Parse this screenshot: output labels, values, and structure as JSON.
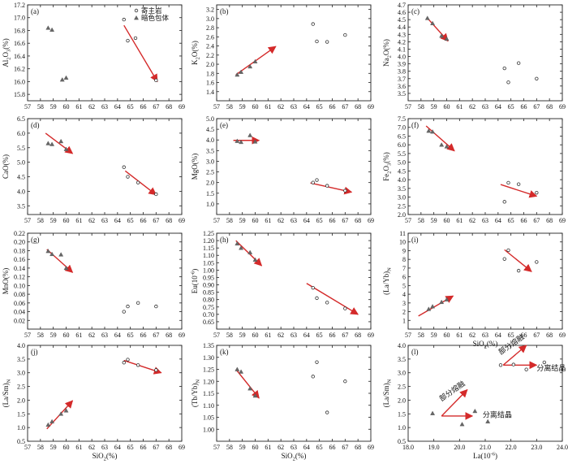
{
  "legend": {
    "host": "寄主岩",
    "incl": "暗色包体"
  },
  "chart_data": [
    {
      "id": "a",
      "type": "scatter",
      "panel_label": "(a)",
      "xlabel": "",
      "ylabel": "Al2O3(%)",
      "xlim": [
        57,
        69
      ],
      "ylim": [
        15.7,
        17.2
      ],
      "x_ticks": [
        "57",
        "58",
        "59",
        "60",
        "61",
        "62",
        "63",
        "64",
        "65",
        "66",
        "67",
        "68",
        "69"
      ],
      "y_ticks": [
        "15.8",
        "16.0",
        "16.2",
        "16.4",
        "16.6",
        "16.8",
        "17.0",
        "17.2"
      ],
      "host_points": [
        [
          64.5,
          16.97
        ],
        [
          64.8,
          16.64
        ],
        [
          65.4,
          16.68
        ],
        [
          67.0,
          16.02
        ]
      ],
      "incl_points": [
        [
          58.6,
          16.84
        ],
        [
          58.9,
          16.81
        ],
        [
          59.7,
          16.03
        ],
        [
          60.0,
          16.06
        ]
      ],
      "arrows": [
        {
          "from": [
            64.5,
            16.88
          ],
          "to": [
            67.1,
            16.0
          ]
        }
      ]
    },
    {
      "id": "b",
      "type": "scatter",
      "panel_label": "(b)",
      "xlabel": "",
      "ylabel": "K2O(%)",
      "xlim": [
        57,
        69
      ],
      "ylim": [
        1.2,
        3.3
      ],
      "x_ticks": [
        "57",
        "58",
        "59",
        "60",
        "61",
        "62",
        "63",
        "64",
        "65",
        "66",
        "67",
        "68",
        "69"
      ],
      "y_ticks": [
        "1.4",
        "1.6",
        "1.8",
        "2.0",
        "2.2",
        "2.4",
        "2.6",
        "2.8",
        "3.0",
        "3.2"
      ],
      "host_points": [
        [
          64.5,
          2.88
        ],
        [
          64.8,
          2.5
        ],
        [
          65.6,
          2.49
        ],
        [
          67.0,
          2.64
        ]
      ],
      "incl_points": [
        [
          58.6,
          1.77
        ],
        [
          58.9,
          1.83
        ],
        [
          59.6,
          1.95
        ],
        [
          60.0,
          2.06
        ]
      ],
      "arrows": [
        {
          "from": [
            58.5,
            1.77
          ],
          "to": [
            61.6,
            2.39
          ]
        }
      ]
    },
    {
      "id": "c",
      "type": "scatter",
      "panel_label": "(c)",
      "xlabel": "",
      "ylabel": "Na2O(%)",
      "xlim": [
        57,
        69
      ],
      "ylim": [
        3.4,
        4.7
      ],
      "x_ticks": [
        "57",
        "58",
        "59",
        "60",
        "61",
        "62",
        "63",
        "64",
        "65",
        "66",
        "67",
        "68",
        "69"
      ],
      "y_ticks": [
        "3.5",
        "3.6",
        "3.7",
        "3.8",
        "3.9",
        "4.0",
        "4.1",
        "4.2",
        "4.3",
        "4.4",
        "4.5",
        "4.6",
        "4.7"
      ],
      "host_points": [
        [
          64.5,
          3.84
        ],
        [
          64.8,
          3.65
        ],
        [
          65.6,
          3.91
        ],
        [
          67.0,
          3.7
        ]
      ],
      "incl_points": [
        [
          58.5,
          4.52
        ],
        [
          58.9,
          4.45
        ],
        [
          59.6,
          4.28
        ],
        [
          60.0,
          4.24
        ]
      ],
      "arrows": [
        {
          "from": [
            58.5,
            4.52
          ],
          "to": [
            60.1,
            4.21
          ]
        }
      ]
    },
    {
      "id": "d",
      "type": "scatter",
      "panel_label": "(d)",
      "xlabel": "",
      "ylabel": "CaO(%)",
      "xlim": [
        57,
        69
      ],
      "ylim": [
        3.2,
        6.5
      ],
      "x_ticks": [
        "57",
        "58",
        "59",
        "60",
        "61",
        "62",
        "63",
        "64",
        "65",
        "66",
        "67",
        "68",
        "69"
      ],
      "y_ticks": [
        "3.5",
        "4.0",
        "4.5",
        "5.0",
        "5.5",
        "6.0",
        "6.5"
      ],
      "host_points": [
        [
          64.5,
          4.83
        ],
        [
          64.8,
          4.5
        ],
        [
          65.6,
          4.3
        ],
        [
          67.0,
          3.9
        ]
      ],
      "incl_points": [
        [
          58.6,
          5.65
        ],
        [
          58.9,
          5.62
        ],
        [
          59.6,
          5.72
        ],
        [
          60.0,
          5.45
        ]
      ],
      "arrows": [
        {
          "from": [
            58.4,
            6.0
          ],
          "to": [
            60.5,
            5.3
          ]
        },
        {
          "from": [
            64.6,
            4.7
          ],
          "to": [
            67.0,
            3.88
          ]
        }
      ]
    },
    {
      "id": "e",
      "type": "scatter",
      "panel_label": "(e)",
      "xlabel": "",
      "ylabel": "MgO(%)",
      "xlim": [
        57,
        69
      ],
      "ylim": [
        0.5,
        5.0
      ],
      "x_ticks": [
        "57",
        "58",
        "59",
        "60",
        "61",
        "62",
        "63",
        "64",
        "65",
        "66",
        "67",
        "68",
        "69"
      ],
      "y_ticks": [
        "1.0",
        "1.5",
        "2.0",
        "2.5",
        "3.0",
        "3.5",
        "4.0",
        "4.5",
        "5.0"
      ],
      "host_points": [
        [
          64.5,
          2.0
        ],
        [
          64.8,
          2.12
        ],
        [
          65.6,
          1.85
        ],
        [
          67.0,
          1.62
        ]
      ],
      "incl_points": [
        [
          58.6,
          3.95
        ],
        [
          58.9,
          3.9
        ],
        [
          59.6,
          4.22
        ],
        [
          60.0,
          3.92
        ]
      ],
      "arrows": [
        {
          "from": [
            58.3,
            3.98
          ],
          "to": [
            60.3,
            3.98
          ]
        },
        {
          "from": [
            64.3,
            1.98
          ],
          "to": [
            67.5,
            1.55
          ]
        }
      ]
    },
    {
      "id": "f",
      "type": "scatter",
      "panel_label": "(f)",
      "xlabel": "",
      "ylabel": "Fe2O3(%)",
      "xlim": [
        57,
        69
      ],
      "ylim": [
        2.0,
        7.5
      ],
      "x_ticks": [
        "57",
        "58",
        "59",
        "60",
        "61",
        "62",
        "63",
        "64",
        "65",
        "66",
        "67",
        "68",
        "69"
      ],
      "y_ticks": [
        "2.0",
        "2.5",
        "3.0",
        "3.5",
        "4.0",
        "4.5",
        "5.0",
        "5.5",
        "6.0",
        "6.5",
        "7.0",
        "7.5"
      ],
      "host_points": [
        [
          64.5,
          2.73
        ],
        [
          64.8,
          3.82
        ],
        [
          65.6,
          3.74
        ],
        [
          67.0,
          3.25
        ]
      ],
      "incl_points": [
        [
          58.6,
          6.8
        ],
        [
          58.9,
          6.75
        ],
        [
          59.6,
          6.0
        ],
        [
          60.0,
          5.9
        ]
      ],
      "arrows": [
        {
          "from": [
            58.4,
            7.08
          ],
          "to": [
            60.6,
            5.65
          ]
        },
        {
          "from": [
            64.2,
            3.72
          ],
          "to": [
            67.0,
            3.05
          ]
        }
      ]
    },
    {
      "id": "g",
      "type": "scatter",
      "panel_label": "(g)",
      "xlabel": "",
      "ylabel": "MnO(%)",
      "xlim": [
        57,
        69
      ],
      "ylim": [
        0.0,
        0.22
      ],
      "x_ticks": [
        "57",
        "58",
        "59",
        "60",
        "61",
        "62",
        "63",
        "64",
        "65",
        "66",
        "67",
        "68",
        "69"
      ],
      "y_ticks": [
        "0.02",
        "0.04",
        "0.06",
        "0.08",
        "0.10",
        "0.12",
        "0.14",
        "0.16",
        "0.18",
        "0.20",
        "0.22"
      ],
      "host_points": [
        [
          64.5,
          0.04
        ],
        [
          64.8,
          0.052
        ],
        [
          65.6,
          0.06
        ],
        [
          67.0,
          0.052
        ]
      ],
      "incl_points": [
        [
          58.6,
          0.179
        ],
        [
          58.9,
          0.172
        ],
        [
          59.6,
          0.171
        ],
        [
          60.0,
          0.14
        ]
      ],
      "arrows": [
        {
          "from": [
            58.5,
            0.183
          ],
          "to": [
            60.5,
            0.13
          ]
        }
      ]
    },
    {
      "id": "h",
      "type": "scatter",
      "panel_label": "(h)",
      "xlabel": "",
      "ylabel": "Eu(10⁻⁶)",
      "xlim": [
        57,
        69
      ],
      "ylim": [
        0.6,
        1.25
      ],
      "x_ticks": [
        "57",
        "58",
        "59",
        "60",
        "61",
        "62",
        "63",
        "64",
        "65",
        "66",
        "67",
        "68",
        "69"
      ],
      "y_ticks": [
        "0.65",
        "0.70",
        "0.75",
        "0.80",
        "0.85",
        "0.90",
        "0.95",
        "1.00",
        "1.05",
        "1.10",
        "1.15",
        "1.20",
        "1.25"
      ],
      "host_points": [
        [
          64.5,
          0.88
        ],
        [
          64.8,
          0.81
        ],
        [
          65.6,
          0.78
        ],
        [
          67.0,
          0.74
        ]
      ],
      "incl_points": [
        [
          58.6,
          1.18
        ],
        [
          58.9,
          1.15
        ],
        [
          59.6,
          1.12
        ],
        [
          60.0,
          1.07
        ]
      ],
      "arrows": [
        {
          "from": [
            58.5,
            1.2
          ],
          "to": [
            60.5,
            1.03
          ]
        },
        {
          "from": [
            64.0,
            0.91
          ],
          "to": [
            68.0,
            0.7
          ]
        }
      ]
    },
    {
      "id": "i",
      "type": "scatter",
      "panel_label": "(i)",
      "xlabel": "SiO2(%)",
      "ylabel": "(La/Yb)N",
      "xlim": [
        57,
        69
      ],
      "ylim": [
        0,
        11
      ],
      "x_ticks": [
        "57",
        "58",
        "59",
        "60",
        "61",
        "62",
        "63",
        "64",
        "65",
        "66",
        "67",
        "68",
        "69"
      ],
      "y_ticks": [
        "1",
        "2",
        "3",
        "4",
        "5",
        "6",
        "7",
        "8",
        "9",
        "10",
        "11"
      ],
      "host_points": [
        [
          64.5,
          8.05
        ],
        [
          64.8,
          9.05
        ],
        [
          65.6,
          6.7
        ],
        [
          67.0,
          7.7
        ]
      ],
      "incl_points": [
        [
          58.6,
          2.3
        ],
        [
          58.9,
          2.6
        ],
        [
          59.6,
          3.1
        ],
        [
          60.0,
          3.4
        ]
      ],
      "arrows": [
        {
          "from": [
            57.8,
            1.5
          ],
          "to": [
            60.5,
            3.8
          ]
        },
        {
          "from": [
            64.5,
            9.1
          ],
          "to": [
            66.6,
            6.6
          ]
        }
      ]
    },
    {
      "id": "j",
      "type": "scatter",
      "panel_label": "(j)",
      "xlabel": "SiO2(%)",
      "ylabel": "(La/Sm)N",
      "xlim": [
        57,
        69
      ],
      "ylim": [
        0.5,
        4.0
      ],
      "x_ticks": [
        "57",
        "58",
        "59",
        "60",
        "61",
        "62",
        "63",
        "64",
        "65",
        "66",
        "67",
        "68",
        "69"
      ],
      "y_ticks": [
        "0.5",
        "1.0",
        "1.5",
        "2.0",
        "2.5",
        "3.0",
        "3.5",
        "4.0"
      ],
      "host_points": [
        [
          64.5,
          3.37
        ],
        [
          64.8,
          3.48
        ],
        [
          65.6,
          3.28
        ],
        [
          67.0,
          3.1
        ]
      ],
      "incl_points": [
        [
          58.6,
          1.1
        ],
        [
          58.9,
          1.22
        ],
        [
          59.6,
          1.5
        ],
        [
          60.0,
          1.62
        ]
      ],
      "arrows": [
        {
          "from": [
            58.5,
            0.95
          ],
          "to": [
            60.5,
            1.98
          ]
        },
        {
          "from": [
            64.5,
            3.45
          ],
          "to": [
            67.4,
            3.0
          ]
        }
      ]
    },
    {
      "id": "k",
      "type": "scatter",
      "panel_label": "(k)",
      "xlabel": "SiO2(%)",
      "ylabel": "(Tb/Yb)N",
      "xlim": [
        57,
        69
      ],
      "ylim": [
        0.95,
        1.35
      ],
      "x_ticks": [
        "57",
        "58",
        "59",
        "60",
        "61",
        "62",
        "63",
        "64",
        "65",
        "66",
        "67",
        "68",
        "69"
      ],
      "y_ticks": [
        "1.00",
        "1.05",
        "1.10",
        "1.15",
        "1.20",
        "1.25",
        "1.30",
        "1.35"
      ],
      "host_points": [
        [
          64.5,
          1.22
        ],
        [
          64.8,
          1.28
        ],
        [
          65.6,
          1.07
        ],
        [
          67.0,
          1.2
        ]
      ],
      "incl_points": [
        [
          58.6,
          1.25
        ],
        [
          58.9,
          1.24
        ],
        [
          59.6,
          1.17
        ],
        [
          60.0,
          1.14
        ]
      ],
      "arrows": [
        {
          "from": [
            58.5,
            1.25
          ],
          "to": [
            60.3,
            1.13
          ]
        }
      ]
    },
    {
      "id": "l",
      "type": "scatter",
      "panel_label": "(l)",
      "xlabel": "La(10⁻⁶)",
      "ylabel": "(La/Sm)N",
      "xlim": [
        18.0,
        24.0
      ],
      "ylim": [
        0.5,
        4.0
      ],
      "x_ticks": [
        "18.0",
        "19.0",
        "20.0",
        "21.0",
        "22.0",
        "23.0",
        "24.0"
      ],
      "y_ticks": [
        "0.5",
        "1.0",
        "1.5",
        "2.0",
        "2.5",
        "3.0",
        "3.5",
        "4.0"
      ],
      "host_points": [
        [
          21.6,
          3.28
        ],
        [
          22.1,
          3.3
        ],
        [
          22.6,
          3.12
        ],
        [
          23.3,
          3.38
        ]
      ],
      "incl_points": [
        [
          18.95,
          1.52
        ],
        [
          20.1,
          1.12
        ],
        [
          20.6,
          1.6
        ],
        [
          21.1,
          1.22
        ]
      ],
      "arrows": [
        {
          "from": [
            19.3,
            1.42
          ],
          "to": [
            20.3,
            2.38
          ]
        },
        {
          "from": [
            19.3,
            1.42
          ],
          "to": [
            20.5,
            1.42
          ]
        },
        {
          "from": [
            21.7,
            3.28
          ],
          "to": [
            22.6,
            4.0
          ]
        },
        {
          "from": [
            21.7,
            3.28
          ],
          "to": [
            23.0,
            3.28
          ]
        }
      ],
      "annotations": [
        {
          "text": "部分熔融",
          "x": 19.3,
          "y": 1.95,
          "rotate": -35
        },
        {
          "text": "分离结晶",
          "x": 20.9,
          "y": 1.38,
          "rotate": 0
        },
        {
          "text": "部分熔融",
          "x": 21.6,
          "y": 3.65,
          "rotate": -35
        },
        {
          "text": "分离结晶",
          "x": 23.0,
          "y": 3.08,
          "rotate": 0
        }
      ]
    }
  ]
}
